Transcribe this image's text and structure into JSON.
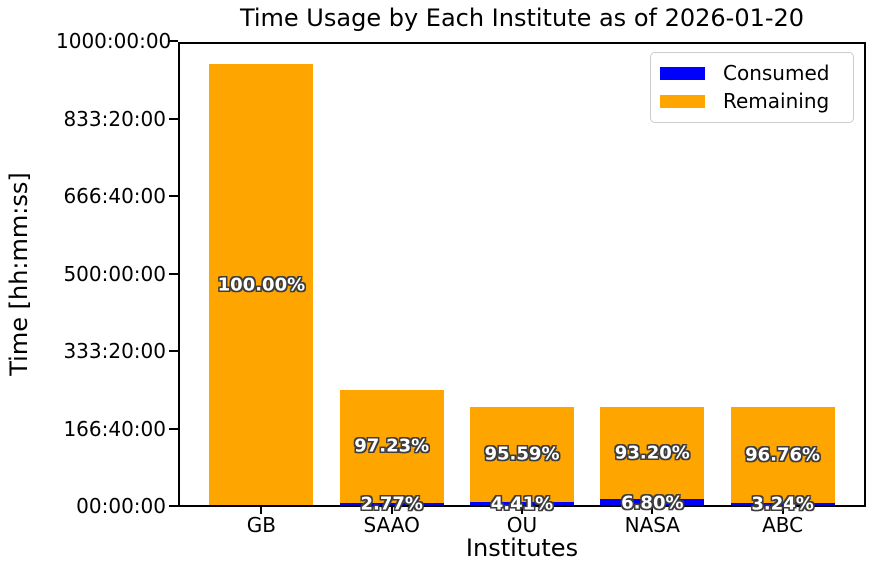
{
  "chart_data": {
    "type": "bar",
    "stacked": true,
    "title": "Time Usage by Each Institute as of 2026-01-20",
    "xlabel": "Institutes",
    "ylabel": "Time [hh:mm:ss]",
    "categories": [
      "GB",
      "SAAO",
      "OU",
      "NASA",
      "ABC"
    ],
    "series": [
      {
        "name": "Consumed",
        "color": "#0000ff",
        "values_hours": [
          0,
          6.93,
          9.41,
          14.51,
          6.91
        ],
        "labels": [
          "",
          "2.77%",
          "4.41%",
          "6.80%",
          "3.24%"
        ]
      },
      {
        "name": "Remaining",
        "color": "#ffa500",
        "values_hours": [
          950,
          243.08,
          203.92,
          198.82,
          206.42
        ],
        "labels": [
          "100.00%",
          "97.23%",
          "95.59%",
          "93.20%",
          "96.76%"
        ]
      }
    ],
    "y_ticks": [
      "00:00:00",
      "166:40:00",
      "333:20:00",
      "500:00:00",
      "666:40:00",
      "833:20:00",
      "1000:00:00"
    ],
    "ylim_hours": [
      0,
      1000
    ],
    "grid": false,
    "legend": {
      "position": "upper right",
      "entries": [
        "Consumed",
        "Remaining"
      ]
    },
    "bar_label_style": {
      "color": "#ffffff",
      "outline": "#3d3d3d",
      "bold": true
    }
  }
}
